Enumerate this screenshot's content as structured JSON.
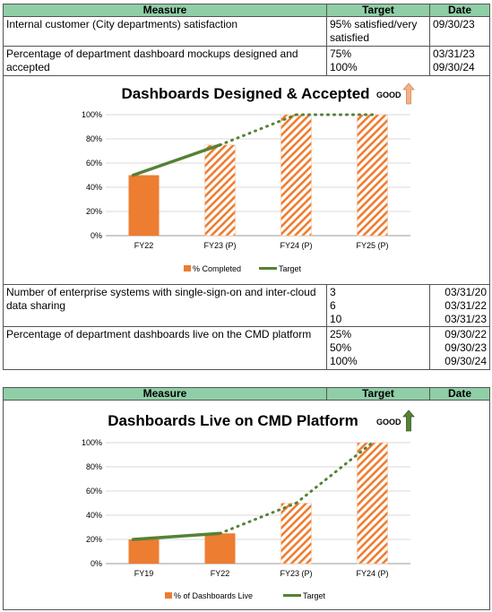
{
  "table1": {
    "headers": {
      "measure": "Measure",
      "target": "Target",
      "date": "Date"
    },
    "rows": [
      {
        "measure": "Internal customer (City departments) satisfaction",
        "target": [
          "95% satisfied/very",
          "satisfied"
        ],
        "date": [
          "09/30/23"
        ]
      },
      {
        "measure": "Percentage of department dashboard mockups designed and accepted",
        "target": [
          "75%",
          "100%"
        ],
        "date": [
          "03/31/23",
          "09/30/24"
        ]
      }
    ]
  },
  "table2": {
    "rows": [
      {
        "measure": "Number of enterprise systems with single-sign-on and inter-cloud data sharing",
        "target": [
          "3",
          "6",
          "10"
        ],
        "date": [
          "03/31/20",
          "03/31/22",
          "03/31/23"
        ]
      },
      {
        "measure": "Percentage of department dashboards live on the CMD platform",
        "target": [
          "25%",
          "50%",
          "100%"
        ],
        "date": [
          "09/30/22",
          "09/30/23",
          "09/30/24"
        ]
      }
    ]
  },
  "table3": {
    "headers": {
      "measure": "Measure",
      "target": "Target",
      "date": "Date"
    }
  },
  "chart_data": [
    {
      "type": "bar",
      "title": "Dashboards Designed & Accepted",
      "good_label": "GOOD",
      "good_arrow_color": "#f4b183",
      "categories": [
        "FY22",
        "FY23 (P)",
        "FY24 (P)",
        "FY25 (P)"
      ],
      "series": [
        {
          "name": "% Completed",
          "values": [
            50,
            75,
            100,
            100
          ],
          "projected": [
            false,
            true,
            true,
            true
          ],
          "color": "#ed7d31"
        },
        {
          "name": "Target",
          "type": "line",
          "values": [
            50,
            75,
            100,
            100
          ],
          "color": "#548235"
        }
      ],
      "y_ticks": [
        "0%",
        "20%",
        "40%",
        "60%",
        "80%",
        "100%"
      ],
      "ylim": [
        0,
        100
      ],
      "grid": true,
      "legend": "bottom"
    },
    {
      "type": "bar",
      "title": "Dashboards Live on CMD Platform",
      "good_label": "GOOD",
      "good_arrow_color": "#548235",
      "categories": [
        "FY19",
        "FY22",
        "FY23 (P)",
        "FY24 (P)"
      ],
      "series": [
        {
          "name": "% of Dashboards Live",
          "values": [
            20,
            25,
            50,
            100
          ],
          "projected": [
            false,
            false,
            true,
            true
          ],
          "color": "#ed7d31"
        },
        {
          "name": "Target",
          "type": "line",
          "values": [
            20,
            25,
            50,
            100
          ],
          "color": "#548235"
        }
      ],
      "y_ticks": [
        "0%",
        "20%",
        "40%",
        "60%",
        "80%",
        "100%"
      ],
      "ylim": [
        0,
        100
      ],
      "grid": true,
      "legend": "bottom"
    }
  ]
}
